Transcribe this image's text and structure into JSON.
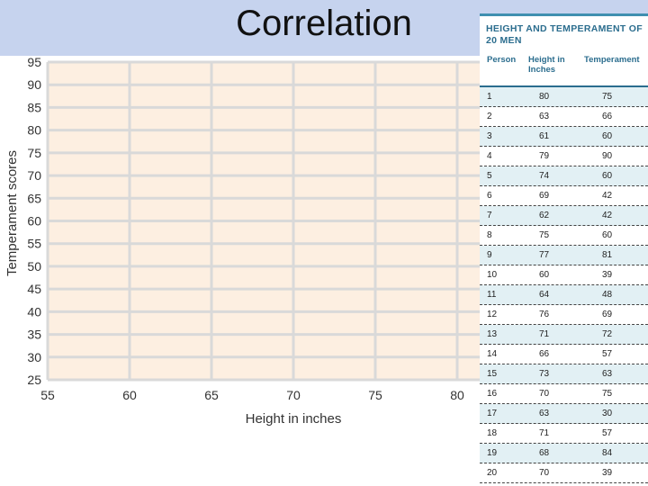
{
  "slide": {
    "title": "Correlation"
  },
  "chart_data": {
    "type": "scatter",
    "title": "",
    "xlabel": "Height in inches",
    "ylabel": "Temperament  scores",
    "xlim": [
      55,
      80
    ],
    "ylim": [
      25,
      95
    ],
    "xticks": [
      55,
      60,
      65,
      70,
      75,
      80
    ],
    "yticks": [
      25,
      30,
      35,
      40,
      45,
      50,
      55,
      60,
      65,
      70,
      75,
      80,
      85,
      90,
      95
    ],
    "grid": true,
    "series": [],
    "colors": {
      "plot_bg": "#fdefe1",
      "grid": "#d9d9d9",
      "axis_text": "#333333"
    }
  },
  "table": {
    "title_line1": "HEIGHT AND TEMPERAMENT OF",
    "title_line2": "20 MEN",
    "headers": [
      "Person",
      "Height in\nInches",
      "Temperament"
    ],
    "rows": [
      [
        "1",
        "80",
        "75"
      ],
      [
        "2",
        "63",
        "66"
      ],
      [
        "3",
        "61",
        "60"
      ],
      [
        "4",
        "79",
        "90"
      ],
      [
        "5",
        "74",
        "60"
      ],
      [
        "6",
        "69",
        "42"
      ],
      [
        "7",
        "62",
        "42"
      ],
      [
        "8",
        "75",
        "60"
      ],
      [
        "9",
        "77",
        "81"
      ],
      [
        "10",
        "60",
        "39"
      ],
      [
        "11",
        "64",
        "48"
      ],
      [
        "12",
        "76",
        "69"
      ],
      [
        "13",
        "71",
        "72"
      ],
      [
        "14",
        "66",
        "57"
      ],
      [
        "15",
        "73",
        "63"
      ],
      [
        "16",
        "70",
        "75"
      ],
      [
        "17",
        "63",
        "30"
      ],
      [
        "18",
        "71",
        "57"
      ],
      [
        "19",
        "68",
        "84"
      ],
      [
        "20",
        "70",
        "39"
      ]
    ]
  }
}
